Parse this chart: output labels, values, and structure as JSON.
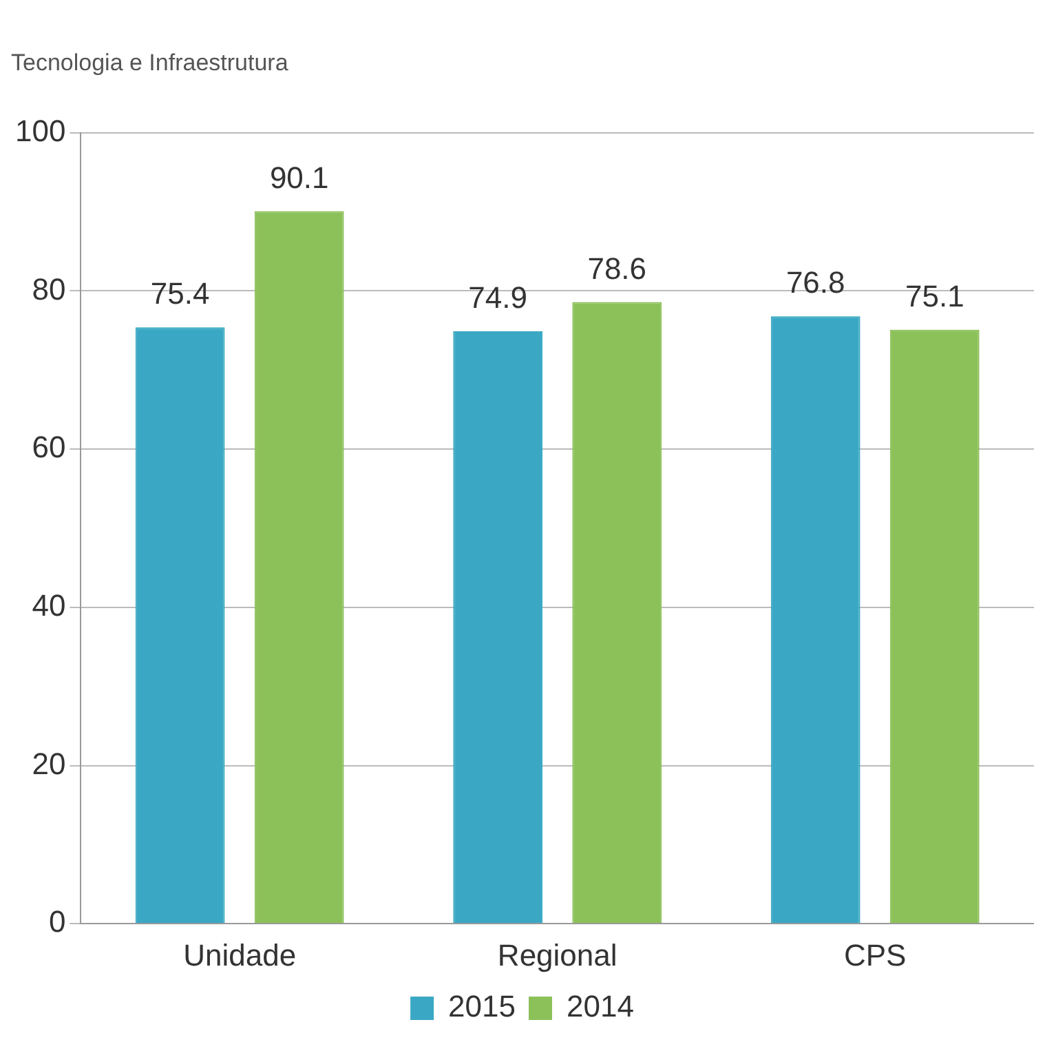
{
  "chart_data": {
    "type": "bar",
    "title": "Tecnologia e Infraestrutura",
    "categories": [
      "Unidade",
      "Regional",
      "CPS"
    ],
    "series": [
      {
        "name": "2015",
        "color": "#3aa8c4",
        "values": [
          75.4,
          74.9,
          76.8
        ]
      },
      {
        "name": "2014",
        "color": "#8cc15a",
        "values": [
          90.1,
          78.6,
          75.1
        ]
      }
    ],
    "ylim": [
      0,
      100
    ],
    "yticks": [
      0,
      20,
      40,
      60,
      80,
      100
    ],
    "grid": "y",
    "legend": "bottom",
    "data_labels": true
  }
}
